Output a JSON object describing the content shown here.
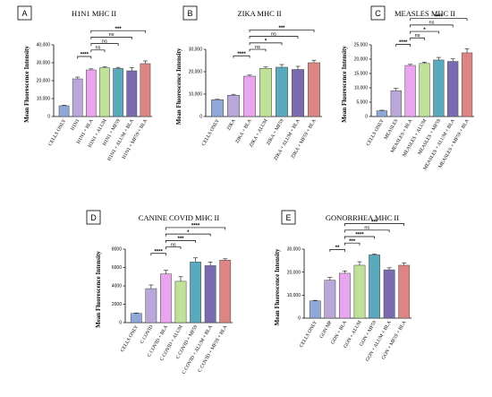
{
  "palette": [
    "#8fa8d8",
    "#b9a7d9",
    "#e9a6ee",
    "#bfe19a",
    "#5aa9bd",
    "#7a6ab0",
    "#dd8585"
  ],
  "chart_data": [
    {
      "type": "bar",
      "panel": "A",
      "title": "H1N1 MHC II",
      "ylabel": "Mean Fluorescence Intensity",
      "ylim": [
        0,
        40000
      ],
      "yticks": [
        "0",
        "10,000",
        "20,000",
        "30,000",
        "40,000"
      ],
      "categories": [
        "CELLS ONLY",
        "H1N1",
        "H1N1 + BLA",
        "H1N1 + ALUM",
        "H1N1 + MF59",
        "H1N1 + ALUM + BLA",
        "H1N1 + MF59 + BLA"
      ],
      "values": [
        6000,
        21000,
        26000,
        27200,
        26800,
        25500,
        29500
      ],
      "errors": [
        300,
        1000,
        600,
        500,
        600,
        1800,
        1500
      ],
      "comparisons": [
        {
          "from": 1,
          "to": 2,
          "label": "****"
        },
        {
          "from": 2,
          "to": 3,
          "label": "ns"
        },
        {
          "from": 2,
          "to": 4,
          "label": "ns"
        },
        {
          "from": 2,
          "to": 5,
          "label": "ns"
        },
        {
          "from": 2,
          "to": 6,
          "label": "***"
        }
      ]
    },
    {
      "type": "bar",
      "panel": "B",
      "title": "ZIKA MHC II",
      "ylabel": "Mean Fluorescence Intensity",
      "ylim": [
        0,
        30000
      ],
      "yticks": [
        "0",
        "10,000",
        "20,000",
        "30,000"
      ],
      "categories": [
        "CELLS ONLY",
        "ZIKA",
        "ZIKA + BLA",
        "ZIKA + ALUM",
        "ZIKA + MF59",
        "ZIKA + ALUM + BLA",
        "ZIKA + MF59 + BLA"
      ],
      "values": [
        7500,
        9500,
        18000,
        21500,
        22000,
        21000,
        24000
      ],
      "errors": [
        200,
        400,
        500,
        600,
        1200,
        1400,
        1100
      ],
      "comparisons": [
        {
          "from": 1,
          "to": 2,
          "label": "****"
        },
        {
          "from": 2,
          "to": 3,
          "label": "ns"
        },
        {
          "from": 2,
          "to": 4,
          "label": "*"
        },
        {
          "from": 2,
          "to": 5,
          "label": "ns"
        },
        {
          "from": 2,
          "to": 6,
          "label": "***"
        }
      ]
    },
    {
      "type": "bar",
      "panel": "C",
      "title": "MEASLES MHC II",
      "ylabel": "Mean Fluorescence Intensity",
      "ylim": [
        0,
        25000
      ],
      "yticks": [
        "0",
        "5,000",
        "10,000",
        "15,000",
        "20,000",
        "25,000"
      ],
      "categories": [
        "CELLS ONLY",
        "MEASLES",
        "MEASLES + BLA",
        "MEASLES + ALUM",
        "MEASLES + MF59",
        "MEASLES + ALUM + BLA",
        "MEASLES + MF59 + BLA"
      ],
      "values": [
        2000,
        9000,
        17800,
        18500,
        19700,
        19200,
        22200
      ],
      "errors": [
        200,
        800,
        400,
        400,
        900,
        900,
        1400
      ],
      "comparisons": [
        {
          "from": 1,
          "to": 2,
          "label": "****"
        },
        {
          "from": 2,
          "to": 3,
          "label": "ns"
        },
        {
          "from": 2,
          "to": 4,
          "label": "*"
        },
        {
          "from": 2,
          "to": 5,
          "label": "ns"
        },
        {
          "from": 2,
          "to": 6,
          "label": "****"
        }
      ]
    },
    {
      "type": "bar",
      "panel": "D",
      "title": "CANINE COVID MHC II",
      "ylabel": "Mean Fluorescence Intensity",
      "ylim": [
        0,
        8000
      ],
      "yticks": [
        "0",
        "2000",
        "4000",
        "6000",
        "8000"
      ],
      "categories": [
        "CELLS ONLY",
        "C COVID",
        "C COVID + BLA",
        "C COVID + ALUM",
        "C COVID + MF59",
        "C COVID + ALUM + BLA",
        "C COVID + MF59 + BLA"
      ],
      "values": [
        1000,
        3700,
        5300,
        4500,
        6600,
        6200,
        6800
      ],
      "errors": [
        50,
        400,
        400,
        500,
        450,
        400,
        150
      ],
      "comparisons": [
        {
          "from": 1,
          "to": 2,
          "label": "****"
        },
        {
          "from": 2,
          "to": 3,
          "label": "ns"
        },
        {
          "from": 2,
          "to": 4,
          "label": "***"
        },
        {
          "from": 2,
          "to": 5,
          "label": "*"
        },
        {
          "from": 2,
          "to": 6,
          "label": "****"
        }
      ]
    },
    {
      "type": "bar",
      "panel": "E",
      "title": "GONORRHEA MHC II",
      "ylabel": "Mean Fluorescence Intensity",
      "ylim": [
        0,
        30000
      ],
      "yticks": [
        "0",
        "10,000",
        "20,000",
        "30,000"
      ],
      "categories": [
        "CELLS ONLY",
        "GON MP",
        "GON + BLA",
        "GON + ALUM",
        "GON + MF59",
        "GON + ALUM + BLA",
        "GON + MF59 + BLA"
      ],
      "values": [
        7500,
        16500,
        19500,
        23000,
        27500,
        21000,
        23000
      ],
      "errors": [
        200,
        1200,
        1000,
        1500,
        400,
        900,
        1000
      ],
      "comparisons": [
        {
          "from": 1,
          "to": 2,
          "label": "**"
        },
        {
          "from": 2,
          "to": 3,
          "label": "***"
        },
        {
          "from": 2,
          "to": 4,
          "label": "****"
        },
        {
          "from": 2,
          "to": 5,
          "label": "ns"
        },
        {
          "from": 2,
          "to": 6,
          "label": "***"
        }
      ]
    }
  ]
}
